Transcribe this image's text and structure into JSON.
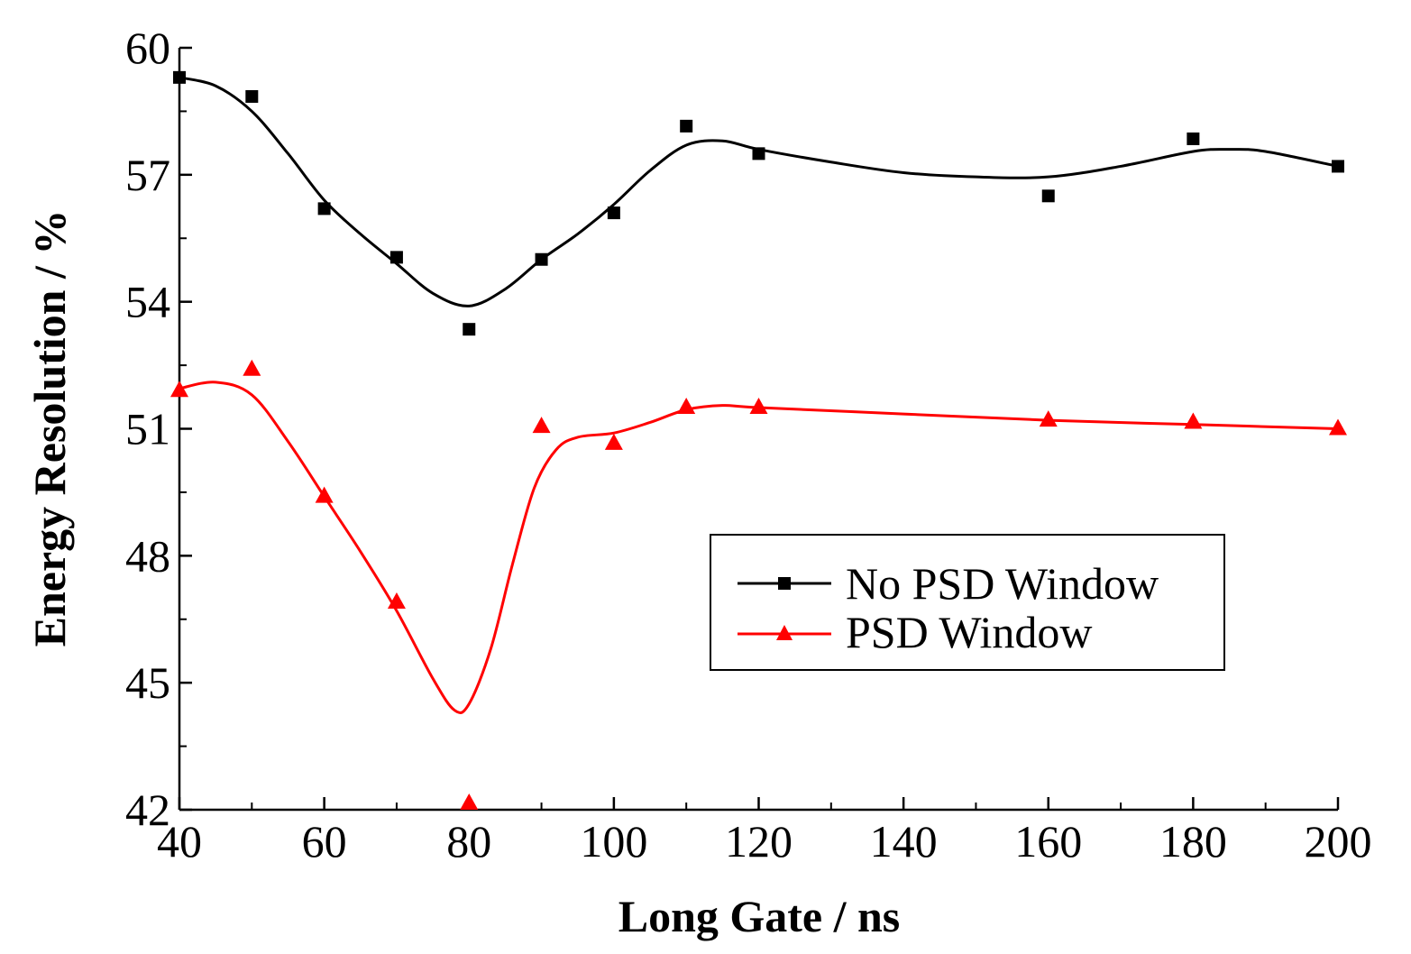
{
  "chart_data": {
    "type": "scatter",
    "xlabel": "Long Gate / ns",
    "ylabel": "Energy Resolution / %",
    "xlim": [
      40,
      200
    ],
    "ylim": [
      42,
      60
    ],
    "x_ticks": [
      40,
      60,
      80,
      100,
      120,
      140,
      160,
      180,
      200
    ],
    "y_ticks": [
      42,
      45,
      48,
      51,
      54,
      57,
      60
    ],
    "grid": false,
    "legend_position": "center-right",
    "series": [
      {
        "name": "No PSD Window",
        "color": "#000000",
        "marker": "square",
        "x": [
          40,
          50,
          60,
          70,
          80,
          90,
          100,
          110,
          120,
          160,
          180,
          200
        ],
        "y": [
          59.3,
          58.85,
          56.2,
          55.05,
          53.35,
          55.0,
          56.1,
          58.15,
          57.5,
          56.5,
          57.85,
          57.2
        ],
        "fit_x": [
          40,
          45,
          50,
          55,
          60,
          65,
          70,
          75,
          80,
          85,
          90,
          95,
          100,
          105,
          110,
          115,
          120,
          130,
          140,
          150,
          160,
          170,
          180,
          185,
          190,
          200
        ],
        "fit_y": [
          59.3,
          59.1,
          58.5,
          57.5,
          56.4,
          55.6,
          54.9,
          54.2,
          53.9,
          54.3,
          55.0,
          55.6,
          56.3,
          57.1,
          57.7,
          57.8,
          57.6,
          57.3,
          57.05,
          56.95,
          56.95,
          57.2,
          57.55,
          57.6,
          57.55,
          57.2
        ]
      },
      {
        "name": "PSD Window",
        "color": "#ff0000",
        "marker": "triangle",
        "x": [
          40,
          50,
          60,
          70,
          80,
          90,
          100,
          110,
          120,
          160,
          180,
          200
        ],
        "y": [
          51.9,
          52.4,
          49.4,
          46.9,
          42.15,
          51.05,
          50.65,
          51.5,
          51.5,
          51.2,
          51.15,
          51.0
        ],
        "fit_x": [
          40,
          45,
          50,
          55,
          60,
          65,
          70,
          75,
          78,
          80,
          83,
          86,
          89,
          92,
          95,
          100,
          105,
          110,
          115,
          120,
          140,
          160,
          180,
          200
        ],
        "fit_y": [
          51.95,
          52.1,
          51.8,
          50.7,
          49.4,
          48.1,
          46.7,
          45.1,
          44.35,
          44.5,
          45.8,
          47.8,
          49.6,
          50.5,
          50.8,
          50.9,
          51.15,
          51.45,
          51.55,
          51.5,
          51.35,
          51.2,
          51.1,
          51.0
        ]
      }
    ]
  }
}
